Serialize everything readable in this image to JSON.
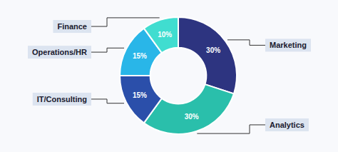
{
  "chart_data": {
    "type": "pie",
    "categories": [
      "Marketing",
      "Analytics",
      "IT/Consulting",
      "Operations/HR",
      "Finance"
    ],
    "values": [
      30,
      30,
      15,
      15,
      10
    ],
    "value_labels": [
      "30%",
      "30%",
      "15%",
      "15%",
      "10%"
    ],
    "colors": [
      "#2d3480",
      "#2abfab",
      "#2b4faa",
      "#29b6e8",
      "#40ddd0"
    ],
    "data_labels": true
  }
}
